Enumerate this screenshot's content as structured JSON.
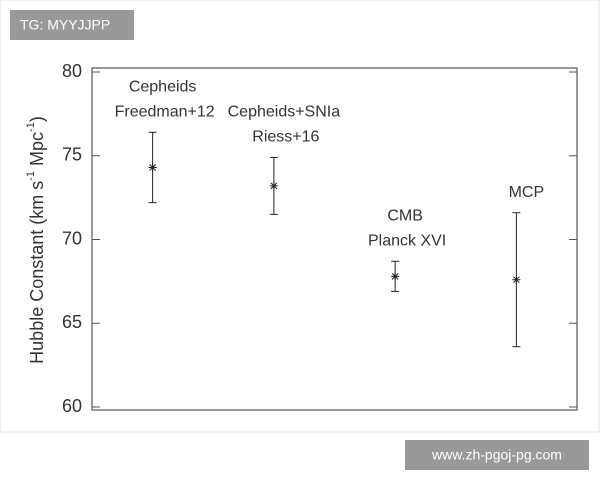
{
  "chart_data": {
    "type": "errorbar",
    "y_label": [
      "Hubble Constant (km s",
      "-1",
      " Mpc",
      "-1",
      ")"
    ],
    "point_labels": [
      [
        "Cepheids",
        "Freedman+12"
      ],
      [
        "Cepheids+SNIa",
        "Riess+16"
      ],
      [
        "CMB",
        "Planck XVI"
      ],
      [
        "MCP"
      ]
    ],
    "values": [
      74.3,
      73.2,
      67.8,
      67.6
    ],
    "errors": [
      2.1,
      1.7,
      0.9,
      4.0
    ],
    "color": "#222222",
    "ylim": [
      60,
      80
    ],
    "yticks": [
      60,
      65,
      70,
      75,
      80
    ]
  },
  "watermark": {
    "top": "TG: MYYJJPP",
    "bottom": "www.zh-pgoj-pg.com"
  }
}
